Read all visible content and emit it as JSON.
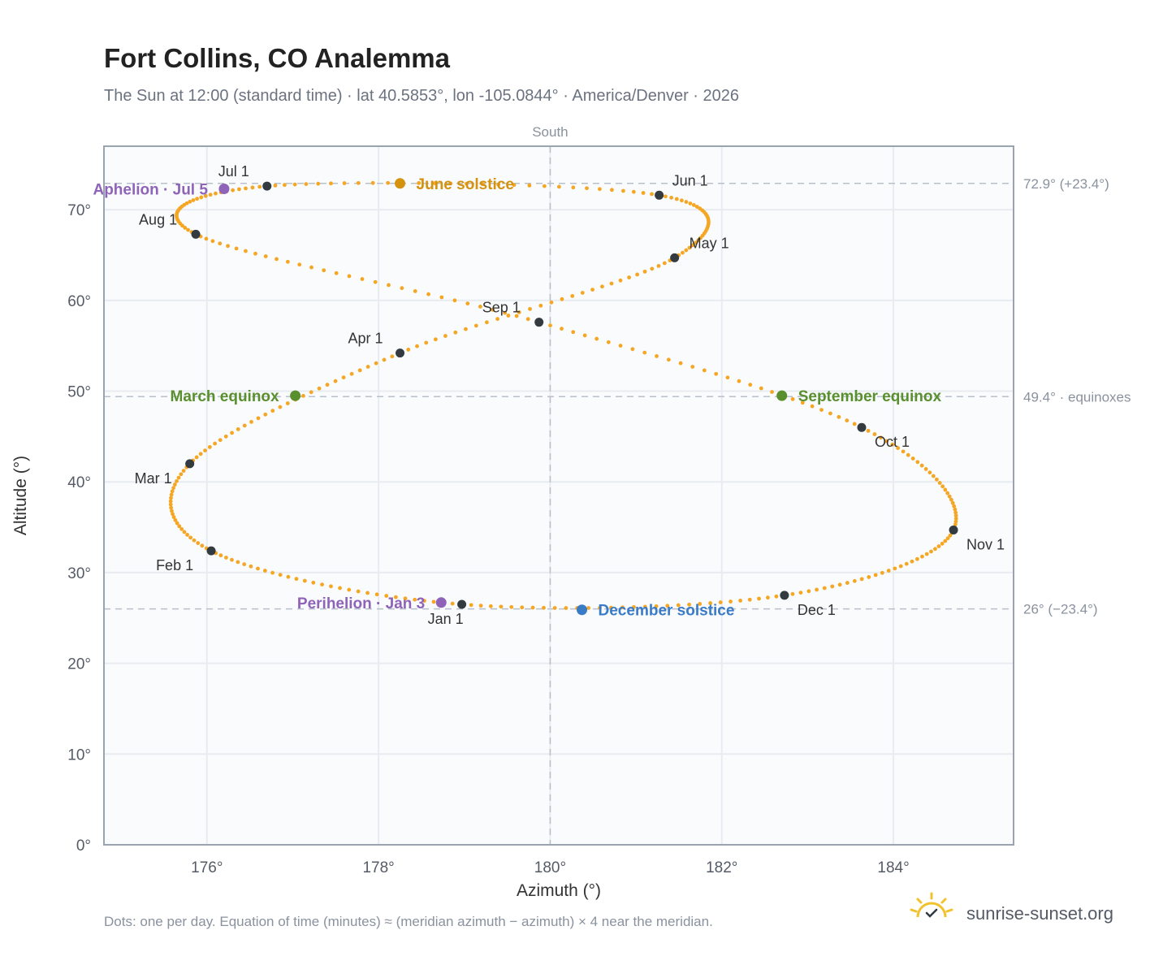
{
  "header": {
    "title": "Fort Collins, CO Analemma",
    "subtitle": "The Sun at 12:00 (standard time) · lat 40.5853°, lon -105.0844° · America/Denver · 2026"
  },
  "footer": {
    "note": "Dots: one per day. Equation of time (minutes) ≈ (meridian azimuth − azimuth) × 4 near the meridian.",
    "brand": "sunrise-sunset.org"
  },
  "colors": {
    "curve": "#f5a623",
    "month_point": "#333a40",
    "june_solstice": "#d4920f",
    "december_solstice": "#3a7bc8",
    "equinox": "#5a8f2e",
    "apsis": "#8e63b8",
    "reference_line": "#b8c0cc",
    "plot_background": "#f9fbfd",
    "grid": "#e8ecf1",
    "frame": "#9aa3b0",
    "brand_icon": "#f2c12e"
  },
  "chart_data": {
    "type": "scatter",
    "xlabel": "Azimuth (°)",
    "ylabel": "Altitude (°)",
    "xlim": [
      174.8,
      185.4
    ],
    "ylim": [
      0,
      77
    ],
    "x_ticks": [
      176,
      178,
      180,
      182,
      184
    ],
    "x_tick_labels": [
      "176°",
      "178°",
      "180°",
      "182°",
      "184°"
    ],
    "y_ticks": [
      0,
      10,
      20,
      30,
      40,
      50,
      60,
      70
    ],
    "y_tick_labels": [
      "0°",
      "10°",
      "20°",
      "30°",
      "40°",
      "50°",
      "60°",
      "70°"
    ],
    "grid": true,
    "meridian": {
      "azimuth": 180,
      "label": "South"
    },
    "reference_lines": [
      {
        "altitude": 72.9,
        "label": "72.9° (+23.4°)"
      },
      {
        "altitude": 49.4,
        "label": "49.4° · equinoxes"
      },
      {
        "altitude": 26.0,
        "label": "26° (−23.4°)"
      }
    ],
    "month_points": [
      {
        "label": "Jan 1",
        "azimuth": 178.97,
        "altitude": 26.5
      },
      {
        "label": "Feb 1",
        "azimuth": 176.05,
        "altitude": 32.4
      },
      {
        "label": "Mar 1",
        "azimuth": 175.8,
        "altitude": 42.0
      },
      {
        "label": "Apr 1",
        "azimuth": 178.25,
        "altitude": 54.2
      },
      {
        "label": "May 1",
        "azimuth": 181.45,
        "altitude": 64.7
      },
      {
        "label": "Jun 1",
        "azimuth": 181.27,
        "altitude": 71.6
      },
      {
        "label": "Jul 1",
        "azimuth": 176.7,
        "altitude": 72.6
      },
      {
        "label": "Aug 1",
        "azimuth": 175.87,
        "altitude": 67.3
      },
      {
        "label": "Sep 1",
        "azimuth": 179.87,
        "altitude": 57.6
      },
      {
        "label": "Oct 1",
        "azimuth": 183.63,
        "altitude": 46.0
      },
      {
        "label": "Nov 1",
        "azimuth": 184.7,
        "altitude": 34.7
      },
      {
        "label": "Dec 1",
        "azimuth": 182.73,
        "altitude": 27.5
      }
    ],
    "events": [
      {
        "label": "June solstice",
        "azimuth": 178.25,
        "altitude": 72.9,
        "kind": "june_solstice"
      },
      {
        "label": "December solstice",
        "azimuth": 180.37,
        "altitude": 25.9,
        "kind": "december_solstice"
      },
      {
        "label": "March equinox",
        "azimuth": 177.03,
        "altitude": 49.5,
        "kind": "equinox"
      },
      {
        "label": "September equinox",
        "azimuth": 182.7,
        "altitude": 49.5,
        "kind": "equinox"
      },
      {
        "label": "Perihelion · Jan 3",
        "azimuth": 178.73,
        "altitude": 26.7,
        "kind": "apsis"
      },
      {
        "label": "Aphelion · Jul 5",
        "azimuth": 176.2,
        "altitude": 72.3,
        "kind": "apsis"
      }
    ]
  }
}
